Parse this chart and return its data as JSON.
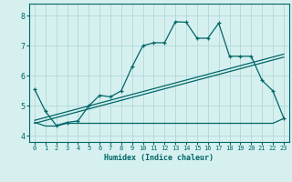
{
  "xlabel": "Humidex (Indice chaleur)",
  "bg_color": "#d6f0f0",
  "line_color": "#006666",
  "grid_color": "#b0d8d8",
  "xlim": [
    -0.5,
    23.5
  ],
  "ylim": [
    3.8,
    8.4
  ],
  "xticks": [
    0,
    1,
    2,
    3,
    4,
    5,
    6,
    7,
    8,
    9,
    10,
    11,
    12,
    13,
    14,
    15,
    16,
    17,
    18,
    19,
    20,
    21,
    22,
    23
  ],
  "yticks": [
    4,
    5,
    6,
    7,
    8
  ],
  "series1_x": [
    0,
    1,
    2,
    3,
    4,
    5,
    6,
    7,
    8,
    9,
    10,
    11,
    12,
    13,
    14,
    15,
    16,
    17,
    18,
    19,
    20,
    21,
    22,
    23
  ],
  "series1_y": [
    5.55,
    4.82,
    4.35,
    4.45,
    4.5,
    5.0,
    5.35,
    5.3,
    5.5,
    6.3,
    7.0,
    7.1,
    7.1,
    7.8,
    7.78,
    7.25,
    7.25,
    7.75,
    6.65,
    6.65,
    6.65,
    5.85,
    5.5,
    4.6
  ],
  "series2_x": [
    0,
    1,
    2,
    3,
    4,
    5,
    6,
    7,
    8,
    9,
    10,
    11,
    12,
    13,
    14,
    15,
    16,
    17,
    18,
    19,
    20,
    21,
    22,
    23
  ],
  "series2_y": [
    4.45,
    4.33,
    4.33,
    4.42,
    4.42,
    4.42,
    4.42,
    4.42,
    4.42,
    4.42,
    4.42,
    4.42,
    4.42,
    4.42,
    4.42,
    4.42,
    4.42,
    4.42,
    4.42,
    4.42,
    4.42,
    4.42,
    4.42,
    4.58
  ],
  "series3_x": [
    0,
    23
  ],
  "series3_y": [
    4.42,
    6.62
  ],
  "series4_x": [
    0,
    23
  ],
  "series4_y": [
    4.52,
    6.72
  ]
}
